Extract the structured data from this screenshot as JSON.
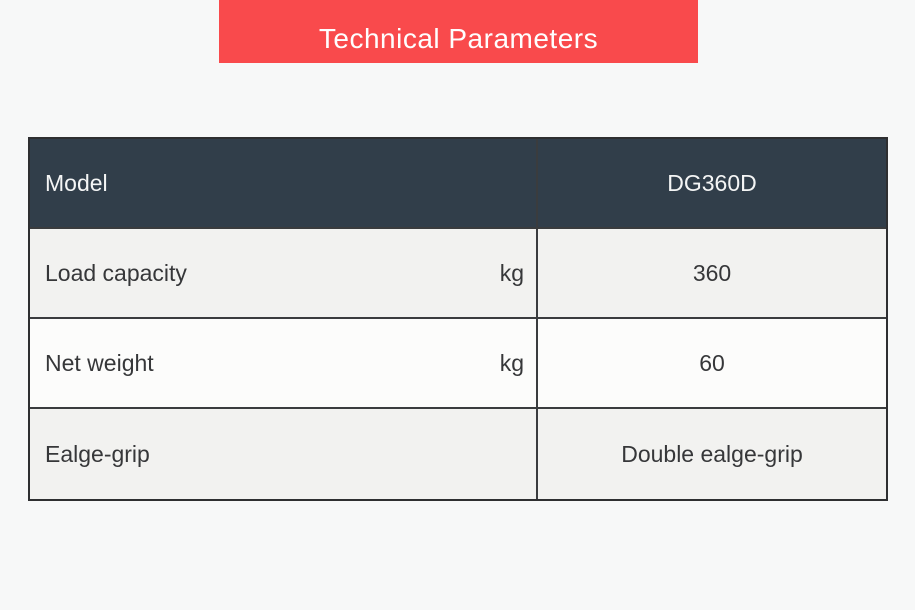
{
  "banner": {
    "title": "Technical Parameters",
    "bg_color": "#f94a4c",
    "text_color": "#fefefe"
  },
  "table": {
    "header": {
      "label": "Model",
      "value": "DG360D",
      "bg_color": "#313e4a",
      "text_color": "#f4f5f5"
    },
    "rows": [
      {
        "label": "Load capacity",
        "unit": "kg",
        "value": "360"
      },
      {
        "label": "Net weight",
        "unit": "kg",
        "value": "60"
      },
      {
        "label": "Ealge-grip",
        "unit": "",
        "value": "Double ealge-grip"
      }
    ],
    "border_color": "#3a3c3e",
    "row_bg": "#f2f2f0",
    "row_bg_alt": "#fcfcfb"
  },
  "page": {
    "bg_color": "#f7f8f8"
  }
}
